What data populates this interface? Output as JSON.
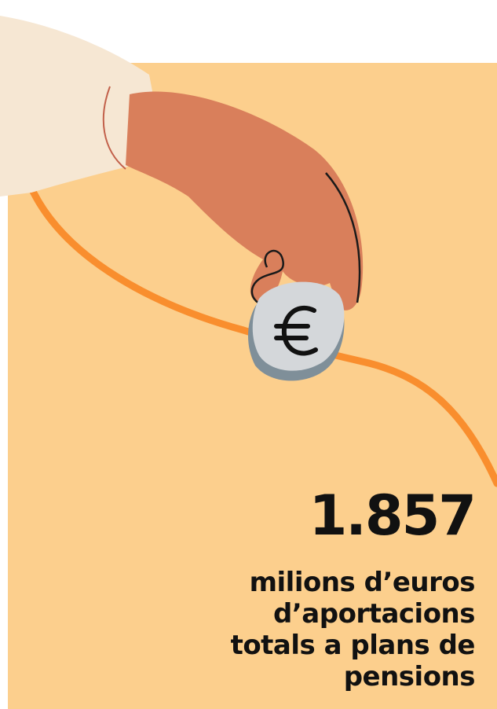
{
  "figure": {
    "value": "1.857",
    "caption_lines": [
      "milions d’euros",
      "d’aportacions",
      "totals a plans de",
      "pensions"
    ]
  }
}
